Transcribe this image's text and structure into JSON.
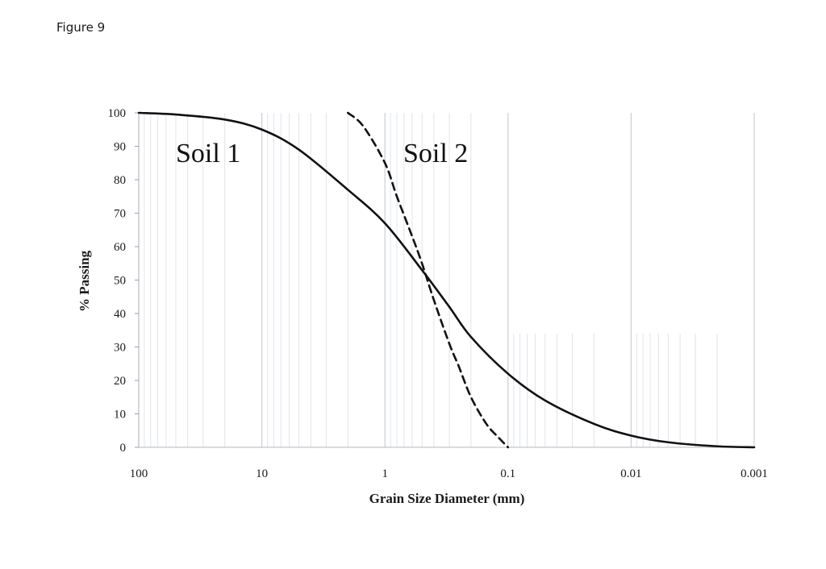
{
  "figure": {
    "label": "Figure 9"
  },
  "chart_data": {
    "type": "line",
    "title": "",
    "xlabel": "Grain Size Diameter  (mm)",
    "ylabel": "% Passing",
    "x_scale": "log",
    "x_reversed": true,
    "xlim": [
      100,
      0.001
    ],
    "ylim": [
      0,
      100
    ],
    "x_ticks": [
      {
        "value": 100,
        "label": "100"
      },
      {
        "value": 10,
        "label": "10"
      },
      {
        "value": 1,
        "label": "1"
      },
      {
        "value": 0.1,
        "label": "0.1"
      },
      {
        "value": 0.01,
        "label": "0.01"
      },
      {
        "value": 0.001,
        "label": "0.001"
      }
    ],
    "y_ticks": [
      0,
      10,
      20,
      30,
      40,
      50,
      60,
      70,
      80,
      90,
      100
    ],
    "grid": "vertical minor log gridlines",
    "series": [
      {
        "name": "Soil 1",
        "line_style": "solid",
        "color": "#111111",
        "points": [
          {
            "x": 100,
            "y": 100
          },
          {
            "x": 50,
            "y": 99.5
          },
          {
            "x": 20,
            "y": 98
          },
          {
            "x": 10,
            "y": 95
          },
          {
            "x": 5,
            "y": 89
          },
          {
            "x": 2,
            "y": 77
          },
          {
            "x": 1,
            "y": 67
          },
          {
            "x": 0.5,
            "y": 53
          },
          {
            "x": 0.3,
            "y": 42
          },
          {
            "x": 0.2,
            "y": 33
          },
          {
            "x": 0.1,
            "y": 22
          },
          {
            "x": 0.05,
            "y": 14
          },
          {
            "x": 0.02,
            "y": 7
          },
          {
            "x": 0.01,
            "y": 3.5
          },
          {
            "x": 0.005,
            "y": 1.5
          },
          {
            "x": 0.002,
            "y": 0.3
          },
          {
            "x": 0.001,
            "y": 0
          }
        ]
      },
      {
        "name": "Soil 2",
        "line_style": "dashed",
        "color": "#111111",
        "points": [
          {
            "x": 2,
            "y": 100
          },
          {
            "x": 1.5,
            "y": 96
          },
          {
            "x": 1,
            "y": 85
          },
          {
            "x": 0.8,
            "y": 75
          },
          {
            "x": 0.6,
            "y": 63
          },
          {
            "x": 0.5,
            "y": 55
          },
          {
            "x": 0.4,
            "y": 44
          },
          {
            "x": 0.3,
            "y": 31
          },
          {
            "x": 0.25,
            "y": 24
          },
          {
            "x": 0.2,
            "y": 15
          },
          {
            "x": 0.15,
            "y": 7
          },
          {
            "x": 0.12,
            "y": 3
          },
          {
            "x": 0.1,
            "y": 0
          }
        ]
      }
    ]
  }
}
